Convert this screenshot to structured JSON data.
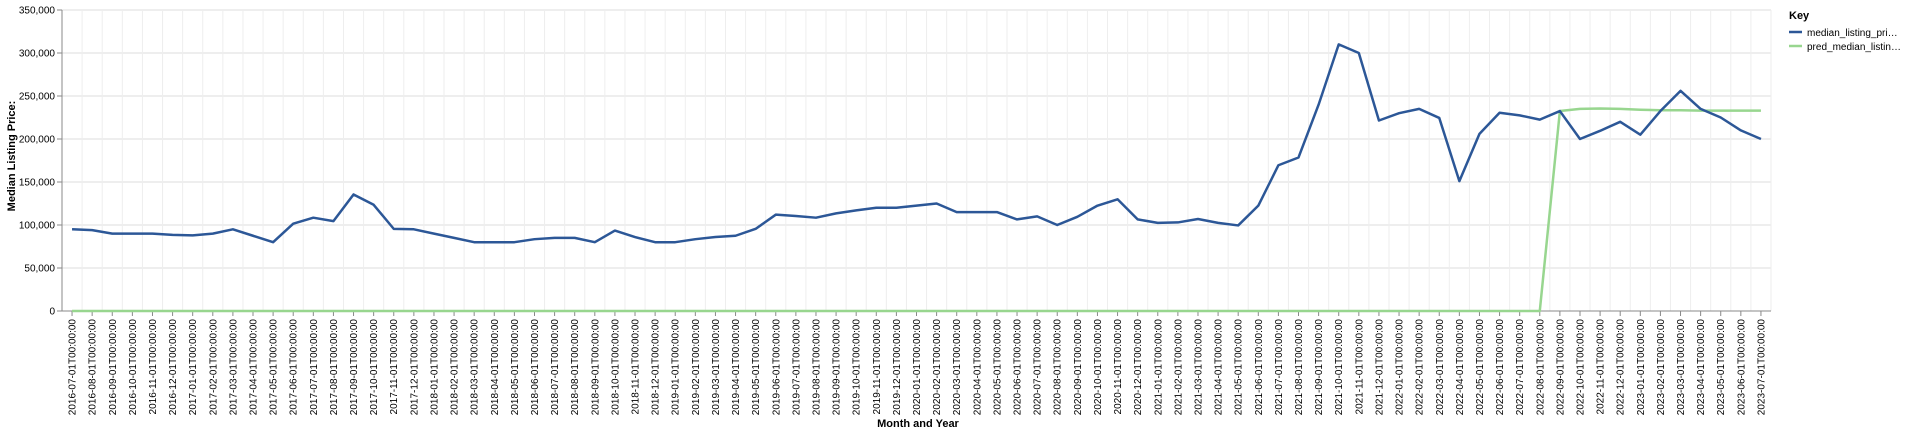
{
  "chart_data": {
    "type": "line",
    "title": "",
    "xlabel": "Month and Year",
    "ylabel": "Median Listing Price:",
    "ylim": [
      0,
      350000
    ],
    "yticks": [
      0,
      50000,
      100000,
      150000,
      200000,
      250000,
      300000,
      350000
    ],
    "ytick_labels": [
      "0",
      "50,000",
      "100,000",
      "150,000",
      "200,000",
      "250,000",
      "300,000",
      "350,000"
    ],
    "grid": "horizontal",
    "legend": {
      "title": "Key",
      "placement": "top-right"
    },
    "x": [
      "2016-07-01T00:00:00",
      "2016-08-01T00:00:00",
      "2016-09-01T00:00:00",
      "2016-10-01T00:00:00",
      "2016-11-01T00:00:00",
      "2016-12-01T00:00:00",
      "2017-01-01T00:00:00",
      "2017-02-01T00:00:00",
      "2017-03-01T00:00:00",
      "2017-04-01T00:00:00",
      "2017-05-01T00:00:00",
      "2017-06-01T00:00:00",
      "2017-07-01T00:00:00",
      "2017-08-01T00:00:00",
      "2017-09-01T00:00:00",
      "2017-10-01T00:00:00",
      "2017-11-01T00:00:00",
      "2017-12-01T00:00:00",
      "2018-01-01T00:00:00",
      "2018-02-01T00:00:00",
      "2018-03-01T00:00:00",
      "2018-04-01T00:00:00",
      "2018-05-01T00:00:00",
      "2018-06-01T00:00:00",
      "2018-07-01T00:00:00",
      "2018-08-01T00:00:00",
      "2018-09-01T00:00:00",
      "2018-10-01T00:00:00",
      "2018-11-01T00:00:00",
      "2018-12-01T00:00:00",
      "2019-01-01T00:00:00",
      "2019-02-01T00:00:00",
      "2019-03-01T00:00:00",
      "2019-04-01T00:00:00",
      "2019-05-01T00:00:00",
      "2019-06-01T00:00:00",
      "2019-07-01T00:00:00",
      "2019-08-01T00:00:00",
      "2019-09-01T00:00:00",
      "2019-10-01T00:00:00",
      "2019-11-01T00:00:00",
      "2019-12-01T00:00:00",
      "2020-01-01T00:00:00",
      "2020-02-01T00:00:00",
      "2020-03-01T00:00:00",
      "2020-04-01T00:00:00",
      "2020-05-01T00:00:00",
      "2020-06-01T00:00:00",
      "2020-07-01T00:00:00",
      "2020-08-01T00:00:00",
      "2020-09-01T00:00:00",
      "2020-10-01T00:00:00",
      "2020-11-01T00:00:00",
      "2020-12-01T00:00:00",
      "2021-01-01T00:00:00",
      "2021-02-01T00:00:00",
      "2021-03-01T00:00:00",
      "2021-04-01T00:00:00",
      "2021-05-01T00:00:00",
      "2021-06-01T00:00:00",
      "2021-07-01T00:00:00",
      "2021-08-01T00:00:00",
      "2021-09-01T00:00:00",
      "2021-10-01T00:00:00",
      "2021-11-01T00:00:00",
      "2021-12-01T00:00:00",
      "2022-01-01T00:00:00",
      "2022-02-01T00:00:00",
      "2022-03-01T00:00:00",
      "2022-04-01T00:00:00",
      "2022-05-01T00:00:00",
      "2022-06-01T00:00:00",
      "2022-07-01T00:00:00",
      "2022-08-01T00:00:00",
      "2022-09-01T00:00:00",
      "2022-10-01T00:00:00",
      "2022-11-01T00:00:00",
      "2022-12-01T00:00:00",
      "2023-01-01T00:00:00",
      "2023-02-01T00:00:00",
      "2023-03-01T00:00:00",
      "2023-04-01T00:00:00",
      "2023-05-01T00:00:00",
      "2023-06-01T00:00:00",
      "2023-07-01T00:00:00"
    ],
    "series": [
      {
        "name": "median_listing_pri…",
        "color": "#2c5797",
        "values": [
          95000,
          94000,
          90000,
          90000,
          90000,
          88500,
          88000,
          90000,
          95000,
          87500,
          80000,
          101500,
          108500,
          104500,
          135500,
          123500,
          95500,
          95000,
          90000,
          85000,
          80000,
          80000,
          80000,
          83500,
          85000,
          85000,
          80000,
          93500,
          86000,
          80000,
          80000,
          83500,
          86000,
          87500,
          95500,
          112000,
          110500,
          108500,
          113500,
          117000,
          120000,
          120000,
          122500,
          125000,
          115000,
          115000,
          115000,
          106500,
          110000,
          100000,
          109500,
          122500,
          129900,
          106500,
          102500,
          103000,
          107000,
          102500,
          99500,
          122500,
          169500,
          178500,
          240000,
          310000,
          300000,
          221500,
          230000,
          235000,
          224500,
          151000,
          206000,
          230500,
          227500,
          222500,
          232500,
          200000,
          209500,
          220000,
          205000,
          232500,
          256000,
          235000,
          225000,
          210000,
          200000
        ]
      },
      {
        "name": "pred_median_listin…",
        "color": "#98d68f",
        "values": [
          0,
          0,
          0,
          0,
          0,
          0,
          0,
          0,
          0,
          0,
          0,
          0,
          0,
          0,
          0,
          0,
          0,
          0,
          0,
          0,
          0,
          0,
          0,
          0,
          0,
          0,
          0,
          0,
          0,
          0,
          0,
          0,
          0,
          0,
          0,
          0,
          0,
          0,
          0,
          0,
          0,
          0,
          0,
          0,
          0,
          0,
          0,
          0,
          0,
          0,
          0,
          0,
          0,
          0,
          0,
          0,
          0,
          0,
          0,
          0,
          0,
          0,
          0,
          0,
          0,
          0,
          0,
          0,
          0,
          0,
          0,
          0,
          0,
          0,
          232500,
          235000,
          235500,
          235000,
          234000,
          233500,
          233500,
          233000,
          233000,
          233000,
          233000
        ]
      }
    ]
  }
}
